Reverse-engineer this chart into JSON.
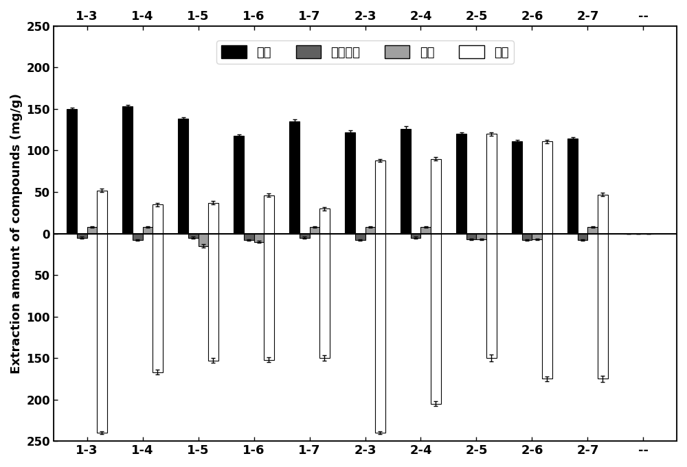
{
  "categories": [
    "1-3",
    "1-4",
    "1-5",
    "1-6",
    "1-7",
    "2-3",
    "2-4",
    "2-5",
    "2-6",
    "2-7",
    "--"
  ],
  "phenolic_acid": [
    150,
    153,
    138,
    118,
    135,
    122,
    126,
    120,
    111,
    114,
    0
  ],
  "phenolic_acid_err": [
    1.5,
    1.5,
    2.0,
    1.5,
    2.5,
    2.0,
    3.0,
    2.0,
    2.0,
    2.0,
    0
  ],
  "proanthocyanidin": [
    -5,
    -8,
    -5,
    -8,
    -5,
    -8,
    -5,
    -7,
    -8,
    -8,
    0
  ],
  "proanthocyanidin_err": [
    1,
    1,
    1,
    1,
    1,
    1,
    1,
    1,
    1,
    1,
    0
  ],
  "flavonoid": [
    8,
    8,
    -15,
    -10,
    8,
    8,
    8,
    -7,
    -7,
    8,
    0
  ],
  "flavonoid_err": [
    1,
    1,
    2,
    1,
    1,
    1,
    1,
    1,
    1,
    1,
    0
  ],
  "lactone_pos": [
    52,
    35,
    37,
    46,
    30,
    88,
    90,
    120,
    111,
    47,
    0
  ],
  "lactone_pos_err": [
    2,
    2,
    2,
    2,
    2,
    2,
    2,
    2,
    2,
    2,
    0
  ],
  "lactone_neg": [
    -240,
    -167,
    -153,
    -152,
    -150,
    -240,
    -205,
    -150,
    -175,
    -175,
    0
  ],
  "lactone_neg_err": [
    2,
    3,
    3,
    3,
    3,
    2,
    3,
    4,
    3,
    4,
    0
  ],
  "ylim": [
    -250,
    250
  ],
  "yticks": [
    -250,
    -200,
    -150,
    -100,
    -50,
    0,
    50,
    100,
    150,
    200,
    250
  ],
  "yticklabels": [
    "250",
    "200",
    "150",
    "100",
    "50",
    "0",
    "50",
    "100",
    "150",
    "200",
    "250"
  ],
  "ylabel": "Extraction amount of compounds (mg/g)",
  "legend_labels": [
    "酟酸",
    "原花青素",
    "黄酮",
    "内酯"
  ],
  "colors": [
    "#000000",
    "#606060",
    "#a0a0a0",
    "#ffffff"
  ],
  "bar_width": 0.18,
  "figsize": [
    10.0,
    6.81
  ],
  "dpi": 100
}
